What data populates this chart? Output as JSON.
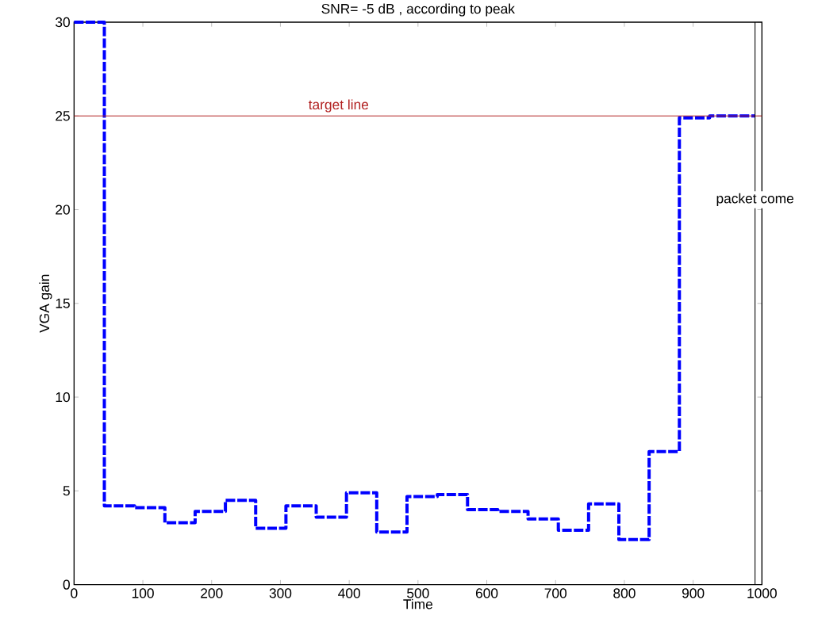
{
  "chart_data": {
    "type": "step",
    "title": "SNR= -5 dB , according to peak",
    "xlabel": "Time",
    "ylabel": "VGA gain",
    "x": [
      0,
      44,
      88,
      132,
      176,
      220,
      264,
      308,
      352,
      396,
      440,
      484,
      528,
      572,
      616,
      660,
      704,
      748,
      792,
      836,
      880,
      924,
      990
    ],
    "series": [
      {
        "color": "#0000ff",
        "values": [
          30,
          4.2,
          4.1,
          3.3,
          3.9,
          4.5,
          3.0,
          4.2,
          3.6,
          4.9,
          2.8,
          4.7,
          4.8,
          4.0,
          3.9,
          3.5,
          2.9,
          4.3,
          2.4,
          7.1,
          24.9,
          25.0,
          25.0
        ]
      }
    ],
    "line_style": "dashed",
    "xlim": [
      0,
      1000
    ],
    "ylim": [
      0,
      30
    ],
    "xticks": [
      0,
      100,
      200,
      300,
      400,
      500,
      600,
      700,
      800,
      900,
      1000
    ],
    "yticks": [
      0,
      5,
      10,
      15,
      20,
      25,
      30
    ],
    "grid": false,
    "ref_lines": [
      {
        "axis": "y",
        "value": 25,
        "label": "target line",
        "color": "#b22222"
      },
      {
        "axis": "x",
        "value": 990,
        "label": "packet come",
        "color": "#000000"
      }
    ]
  }
}
